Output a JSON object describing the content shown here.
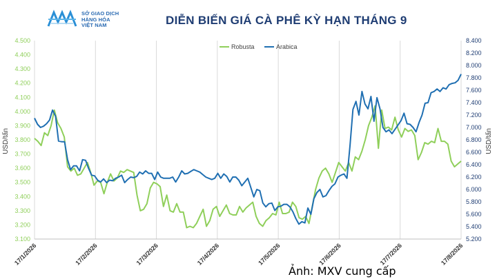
{
  "header": {
    "logo_lines": [
      "SỞ GIAO DỊCH",
      "HÀNG HÓA",
      "VIỆT NAM"
    ],
    "title": "DIỄN BIẾN GIÁ CÀ PHÊ KỲ HẠN THÁNG 9"
  },
  "caption": "Ảnh: MXV cung cấp",
  "colors": {
    "robusta": "#8fcf5a",
    "arabica": "#1f6fb2",
    "title": "#1f3d73",
    "axis_left": "#8fcf5a",
    "axis_right": "#1f3d73",
    "grid": "#d9d9d9"
  },
  "chart_data": {
    "type": "line",
    "title": "DIỄN BIẾN GIÁ CÀ PHÊ KỲ HẠN THÁNG 9",
    "legend_position": "top",
    "ylabel_left": "USD/tấn",
    "ylabel_right": "USD/tấn",
    "ylim_left": [
      3100,
      4500
    ],
    "ylim_right": [
      5200,
      8400
    ],
    "yticks_left": [
      "3.100",
      "3.200",
      "3.300",
      "3.400",
      "3.500",
      "3.600",
      "3.700",
      "3.800",
      "3.900",
      "4.000",
      "4.100",
      "4.200",
      "4.300",
      "4.400",
      "4.500"
    ],
    "yticks_right": [
      "5.200",
      "5.400",
      "5.600",
      "5.800",
      "6.000",
      "6.200",
      "6.400",
      "6.600",
      "6.800",
      "7.000",
      "7.200",
      "7.400",
      "7.600",
      "7.800",
      "8.000",
      "8.200",
      "8.400"
    ],
    "xticks": [
      "17/1/2026",
      "17/2/2026",
      "17/3/2026",
      "17/4/2026",
      "17/5/2026",
      "17/6/2026",
      "17/7/2026",
      "17/8/2026"
    ],
    "grid": "vertical",
    "series": [
      {
        "name": "Robusta",
        "axis": "left",
        "values": [
          3810,
          3790,
          3760,
          3850,
          3830,
          3900,
          4010,
          3920,
          3880,
          3820,
          3610,
          3580,
          3600,
          3550,
          3560,
          3600,
          3640,
          3570,
          3480,
          3510,
          3500,
          3420,
          3500,
          3560,
          3510,
          3530,
          3580,
          3570,
          3590,
          3580,
          3570,
          3410,
          3300,
          3310,
          3350,
          3460,
          3500,
          3490,
          3470,
          3330,
          3410,
          3300,
          3290,
          3350,
          3290,
          3290,
          3180,
          3190,
          3180,
          3210,
          3260,
          3310,
          3190,
          3230,
          3310,
          3330,
          3260,
          3300,
          3340,
          3280,
          3270,
          3270,
          3330,
          3290,
          3320,
          3340,
          3360,
          3260,
          3210,
          3190,
          3230,
          3250,
          3280,
          3270,
          3360,
          3280,
          3280,
          3290,
          3360,
          3330,
          3250,
          3240,
          3260,
          3210,
          3330,
          3450,
          3530,
          3580,
          3600,
          3560,
          3500,
          3570,
          3640,
          3610,
          3580,
          3640,
          3580,
          3680,
          3660,
          3720,
          3800,
          3900,
          3960,
          4040,
          3740,
          4010,
          3880,
          3890,
          3870,
          3960,
          3870,
          3820,
          3880,
          3860,
          3870,
          3830,
          3660,
          3710,
          3780,
          3770,
          3790,
          3780,
          3880,
          3790,
          3790,
          3770,
          3650,
          3610,
          3630,
          3650
        ]
      },
      {
        "name": "Arabica",
        "axis": "right",
        "values": [
          7150,
          7050,
          7000,
          7020,
          7060,
          7120,
          7280,
          7180,
          6780,
          6770,
          6770,
          6480,
          6320,
          6380,
          6380,
          6300,
          6480,
          6470,
          6340,
          6230,
          6220,
          6150,
          6120,
          6170,
          6110,
          6150,
          6140,
          6180,
          6200,
          6230,
          6110,
          6160,
          6200,
          6190,
          6210,
          6280,
          6250,
          6300,
          6260,
          6260,
          6160,
          6280,
          6200,
          6180,
          6180,
          6180,
          6200,
          6120,
          6200,
          6300,
          6250,
          6260,
          6290,
          6320,
          6300,
          6280,
          6240,
          6200,
          6180,
          6160,
          6180,
          6260,
          6180,
          6250,
          6210,
          6120,
          6200,
          6200,
          6150,
          6060,
          6120,
          6180,
          6030,
          5880,
          6000,
          5980,
          5780,
          5720,
          5770,
          5780,
          5660,
          5720,
          5730,
          5760,
          5760,
          5720,
          5640,
          5530,
          5440,
          5480,
          5460,
          5700,
          5600,
          5850,
          5950,
          6000,
          5880,
          5900,
          5980,
          6050,
          6090,
          6200,
          6230,
          6250,
          6180,
          6700,
          7290,
          7420,
          7200,
          7580,
          7380,
          7300,
          7500,
          7100,
          7480,
          7300,
          7000,
          6930,
          6960,
          6900,
          6970,
          7040,
          7110,
          7230,
          7060,
          7050,
          7000,
          6930,
          7080,
          7200,
          7390,
          7400,
          7560,
          7580,
          7620,
          7580,
          7640,
          7620,
          7690,
          7710,
          7720,
          7760,
          7860
        ]
      }
    ]
  }
}
